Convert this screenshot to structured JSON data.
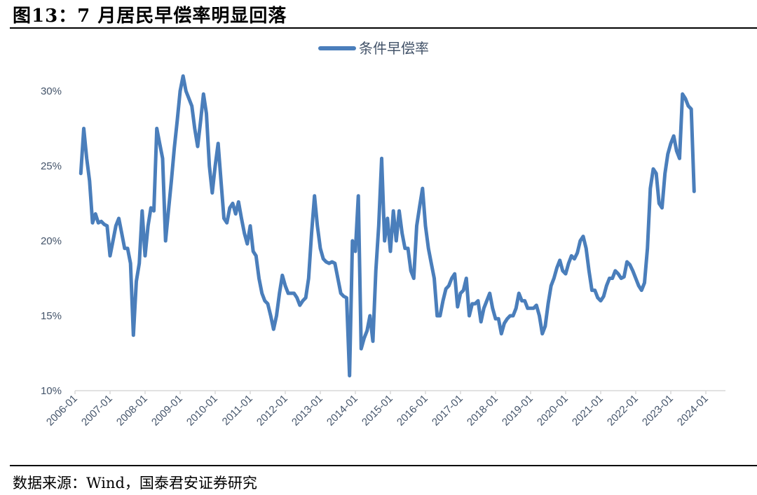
{
  "header": {
    "title": "图13：7 月居民早偿率明显回落"
  },
  "footer": {
    "source": "数据来源：Wind，国泰君安证券研究"
  },
  "colors": {
    "series": "#4a7ebb",
    "axis_text": "#44546a",
    "axis_line": "#d9d9d9"
  },
  "chart_data": {
    "type": "line",
    "title": "",
    "xlabel": "",
    "ylabel": "",
    "ylim": [
      0.1,
      0.3
    ],
    "yticks": [
      0.1,
      0.15,
      0.2,
      0.25,
      0.3
    ],
    "ytick_labels": [
      "10%",
      "15%",
      "20%",
      "25%",
      "30%"
    ],
    "xticks": [
      "2006-01",
      "2007-01",
      "2008-01",
      "2009-01",
      "2010-01",
      "2011-01",
      "2012-01",
      "2013-01",
      "2014-01",
      "2015-01",
      "2016-01",
      "2017-01",
      "2018-01",
      "2019-01",
      "2020-01",
      "2021-01",
      "2022-01",
      "2023-01",
      "2024-01"
    ],
    "grid": false,
    "legend_position": "top-center",
    "x_start": "2006-03",
    "series": [
      {
        "name": "条件早偿率",
        "values": [
          0.245,
          0.275,
          0.255,
          0.24,
          0.212,
          0.218,
          0.212,
          0.213,
          0.211,
          0.21,
          0.19,
          0.2,
          0.21,
          0.215,
          0.205,
          0.195,
          0.195,
          0.185,
          0.137,
          0.173,
          0.185,
          0.22,
          0.19,
          0.21,
          0.222,
          0.22,
          0.275,
          0.265,
          0.255,
          0.2,
          0.22,
          0.24,
          0.262,
          0.28,
          0.3,
          0.31,
          0.3,
          0.295,
          0.29,
          0.275,
          0.263,
          0.28,
          0.298,
          0.285,
          0.25,
          0.232,
          0.25,
          0.265,
          0.24,
          0.215,
          0.212,
          0.222,
          0.225,
          0.218,
          0.226,
          0.215,
          0.205,
          0.198,
          0.21,
          0.193,
          0.19,
          0.175,
          0.165,
          0.16,
          0.158,
          0.15,
          0.141,
          0.15,
          0.165,
          0.177,
          0.17,
          0.165,
          0.165,
          0.165,
          0.162,
          0.157,
          0.16,
          0.162,
          0.175,
          0.205,
          0.23,
          0.21,
          0.195,
          0.188,
          0.186,
          0.185,
          0.186,
          0.185,
          0.175,
          0.165,
          0.163,
          0.162,
          0.11,
          0.2,
          0.193,
          0.23,
          0.128,
          0.135,
          0.14,
          0.15,
          0.133,
          0.18,
          0.21,
          0.255,
          0.2,
          0.215,
          0.193,
          0.22,
          0.2,
          0.22,
          0.205,
          0.195,
          0.195,
          0.18,
          0.175,
          0.21,
          0.223,
          0.235,
          0.21,
          0.195,
          0.185,
          0.175,
          0.15,
          0.15,
          0.16,
          0.168,
          0.17,
          0.175,
          0.178,
          0.156,
          0.165,
          0.167,
          0.175,
          0.15,
          0.158,
          0.158,
          0.16,
          0.146,
          0.155,
          0.16,
          0.165,
          0.155,
          0.148,
          0.148,
          0.138,
          0.145,
          0.148,
          0.15,
          0.15,
          0.155,
          0.165,
          0.16,
          0.16,
          0.155,
          0.155,
          0.155,
          0.157,
          0.15,
          0.138,
          0.143,
          0.158,
          0.17,
          0.175,
          0.182,
          0.187,
          0.18,
          0.178,
          0.185,
          0.19,
          0.188,
          0.192,
          0.2,
          0.203,
          0.195,
          0.18,
          0.167,
          0.167,
          0.162,
          0.16,
          0.163,
          0.17,
          0.175,
          0.175,
          0.18,
          0.178,
          0.175,
          0.176,
          0.186,
          0.184,
          0.18,
          0.175,
          0.17,
          0.167,
          0.172,
          0.195,
          0.235,
          0.248,
          0.245,
          0.225,
          0.222,
          0.245,
          0.258,
          0.265,
          0.27,
          0.26,
          0.255,
          0.298,
          0.295,
          0.29,
          0.288,
          0.233
        ]
      }
    ]
  }
}
